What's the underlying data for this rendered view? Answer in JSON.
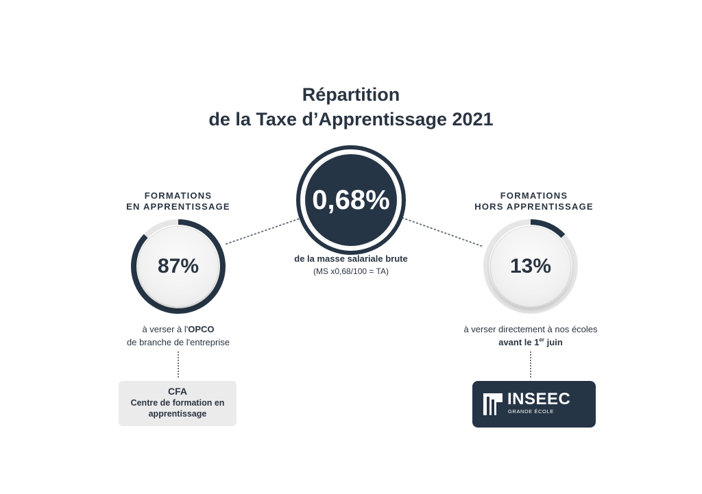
{
  "title": {
    "line1": "Répartition",
    "line2": "de la Taxe d’Apprentissage 2021"
  },
  "center": {
    "value": "0,68%",
    "caption_bold": "de la masse salariale brute",
    "caption_formula": "(MS x0,68/100 = TA)"
  },
  "left": {
    "heading_line1": "FORMATIONS",
    "heading_line2": "EN APPRENTISSAGE",
    "percent_label": "87%",
    "percent_value": 87,
    "caption_prefix": "à verser à l'",
    "caption_bold": "OPCO",
    "caption_line2": "de branche de l'entreprise",
    "box_title": "CFA",
    "box_subtitle_line1": "Centre de formation en",
    "box_subtitle_line2": "apprentissage"
  },
  "right": {
    "heading_line1": "FORMATIONS",
    "heading_line2": "HORS APPRENTISSAGE",
    "percent_label": "13%",
    "percent_value": 13,
    "caption_line1": "à verser directement à nos écoles",
    "caption_bold_prefix": "avant le 1",
    "caption_sup": "er",
    "caption_bold_suffix": " juin",
    "logo_text": "INSEEC",
    "logo_subtext": "GRANDE ÉCOLE"
  },
  "colors": {
    "navy": "#263545",
    "ring_track": "#e6e6e6",
    "text": "#2a3441"
  }
}
